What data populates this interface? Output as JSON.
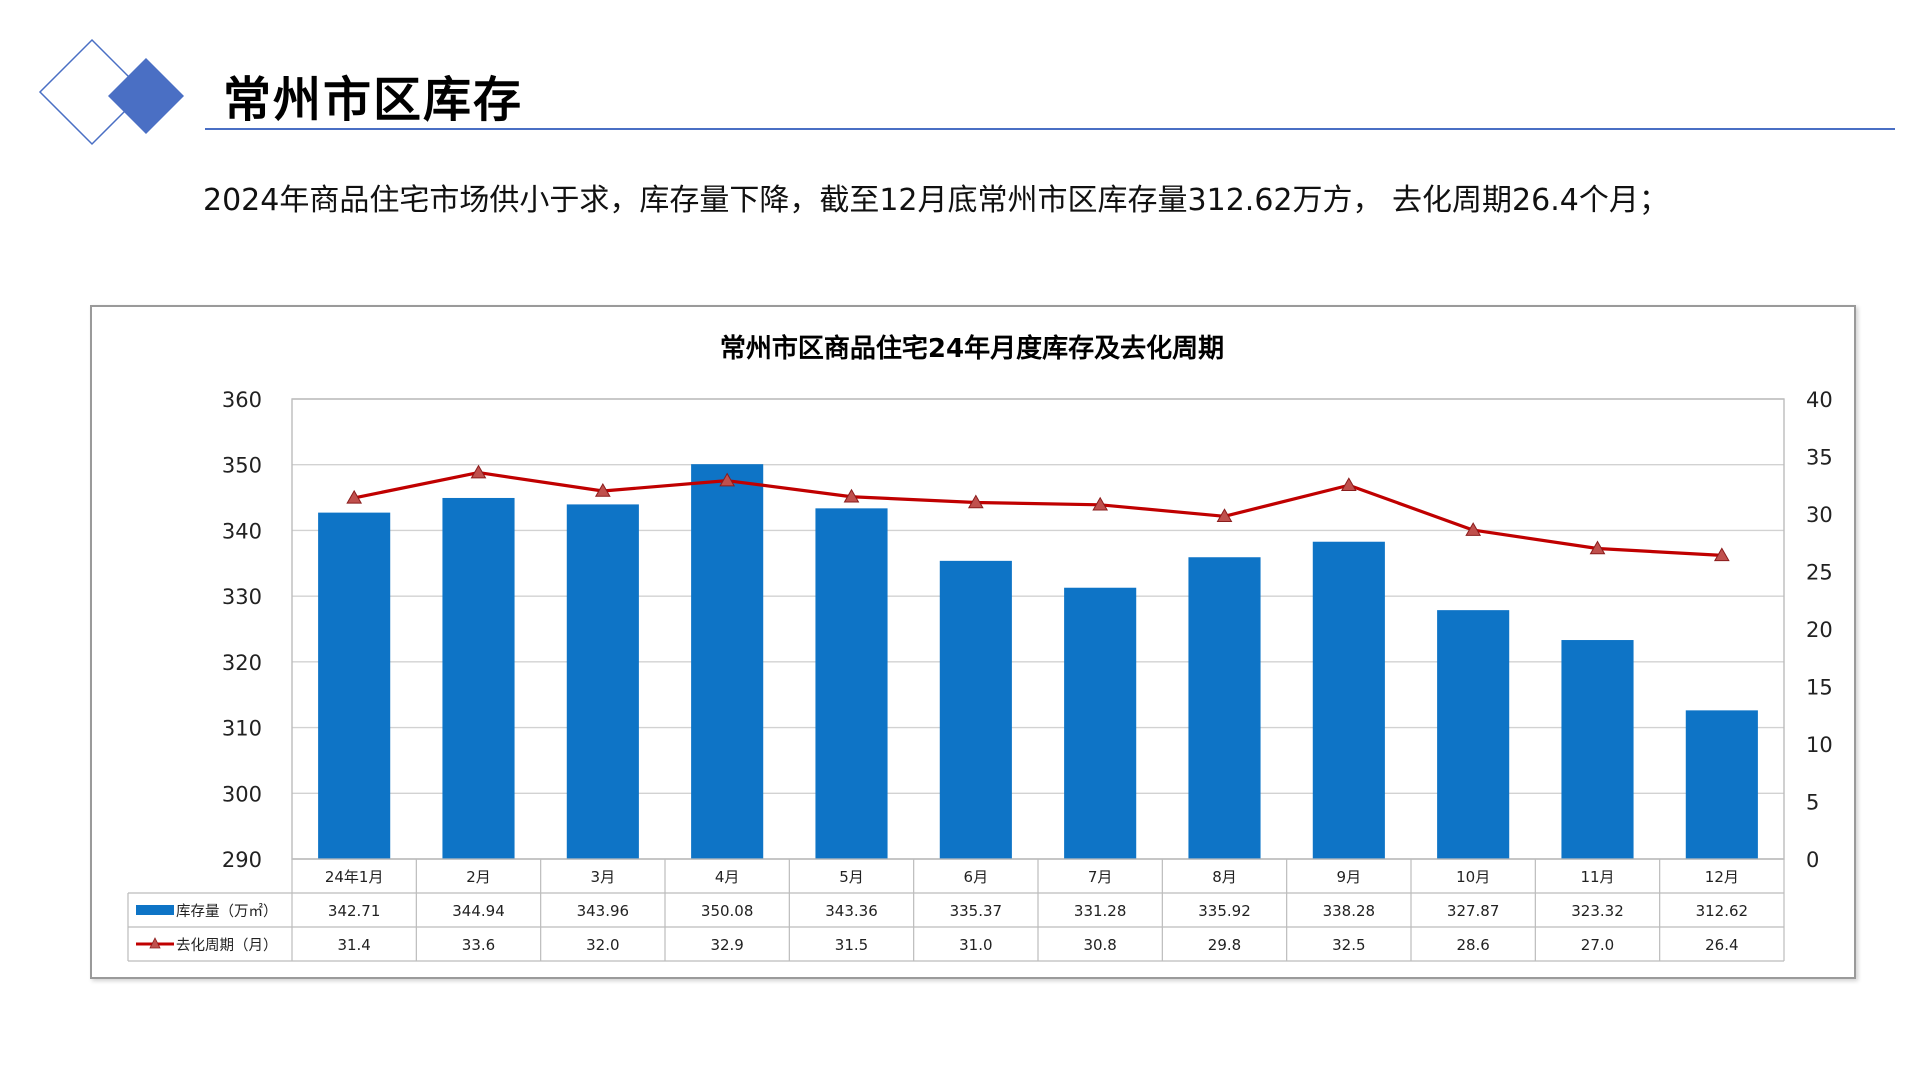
{
  "page": {
    "title": "常州市区库存",
    "summary": "2024年商品住宅市场供小于求，库存量下降，截至12月底常州市区库存量312.62万方， 去化周期26.4个月；"
  },
  "colors": {
    "accent": "#4a6fc4",
    "bar": "#0e74c6",
    "line": "#c00000",
    "marker_fill": "#c0504d"
  },
  "chart_data": {
    "type": "bar",
    "title": "常州市区商品住宅24年月度库存及去化周期",
    "categories": [
      "24年1月",
      "2月",
      "3月",
      "4月",
      "5月",
      "6月",
      "7月",
      "8月",
      "9月",
      "10月",
      "11月",
      "12月"
    ],
    "series": [
      {
        "name": "库存量（万㎡）",
        "type": "bar",
        "axis": "left",
        "values": [
          342.71,
          344.94,
          343.96,
          350.08,
          343.36,
          335.37,
          331.28,
          335.92,
          338.28,
          327.87,
          323.32,
          312.62
        ],
        "labels": [
          "342.71",
          "344.94",
          "343.96",
          "350.08",
          "343.36",
          "335.37",
          "331.28",
          "335.92",
          "338.28",
          "327.87",
          "323.32",
          "312.62"
        ]
      },
      {
        "name": "去化周期（月）",
        "type": "line",
        "axis": "right",
        "values": [
          31.4,
          33.6,
          32.0,
          32.9,
          31.5,
          31.0,
          30.8,
          29.8,
          32.5,
          28.6,
          27.0,
          26.4
        ],
        "labels": [
          "31.4",
          "33.6",
          "32.0",
          "32.9",
          "31.5",
          "31.0",
          "30.8",
          "29.8",
          "32.5",
          "28.6",
          "27.0",
          "26.4"
        ]
      }
    ],
    "y_left": {
      "min": 290,
      "max": 360,
      "ticks": [
        "290",
        "300",
        "310",
        "320",
        "330",
        "340",
        "350",
        "360"
      ]
    },
    "y_right": {
      "min": 0,
      "max": 40,
      "ticks": [
        "0",
        "5",
        "10",
        "15",
        "20",
        "25",
        "30",
        "35",
        "40"
      ]
    },
    "grid": true,
    "legend": "data-table"
  }
}
